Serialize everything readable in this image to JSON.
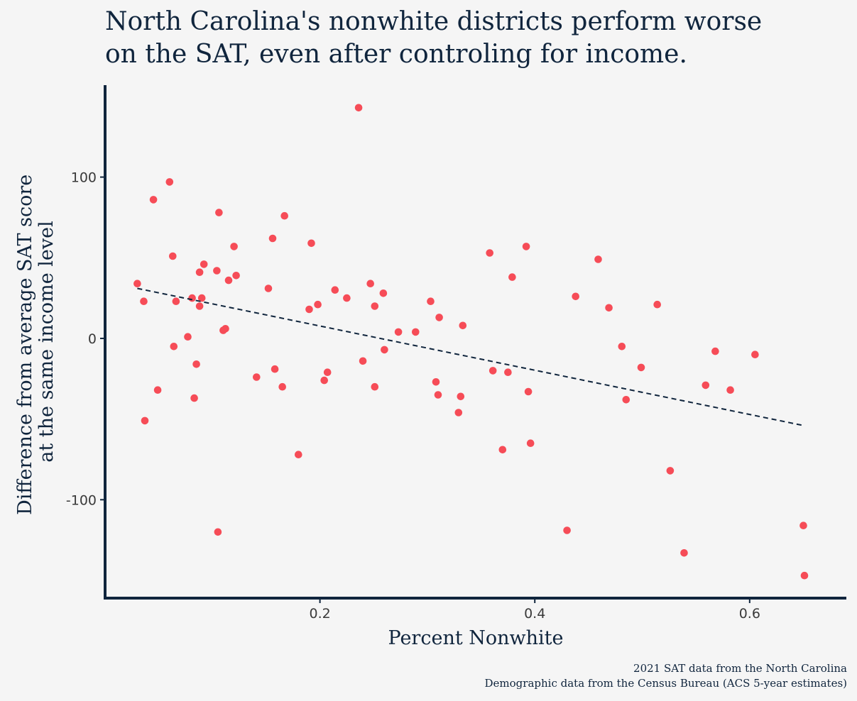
{
  "title_lines": [
    "North Carolina's nonwhite districts perform worse",
    "on the SAT, even after controling for income."
  ],
  "caption_lines": [
    "2021 SAT data from the North Carolina",
    "Demographic data from the Census Bureau (ACS 5-year estimates)"
  ],
  "colors": {
    "point": "#f64c57",
    "axis": "#10253d",
    "trend": "#10253d",
    "background": "#f5f5f5"
  },
  "chart_data": {
    "type": "scatter",
    "xlabel": "Percent Nonwhite",
    "ylabel_lines": [
      "Difference from average SAT score",
      "at the same income level"
    ],
    "xlim": [
      0.0,
      0.69
    ],
    "ylim": [
      -161,
      157
    ],
    "xticks": [
      0.2,
      0.4,
      0.6
    ],
    "xtick_labels": [
      "0.2",
      "0.4",
      "0.6"
    ],
    "yticks": [
      100,
      0,
      -100
    ],
    "ytick_labels": [
      "100",
      "0",
      "-100"
    ],
    "grid": false,
    "trend_line": {
      "style": "dashed",
      "x": [
        0.03,
        0.65
      ],
      "y": [
        31,
        -54
      ]
    },
    "points": [
      [
        0.03,
        34
      ],
      [
        0.036,
        23
      ],
      [
        0.037,
        -51
      ],
      [
        0.045,
        86
      ],
      [
        0.049,
        -32
      ],
      [
        0.06,
        97
      ],
      [
        0.063,
        51
      ],
      [
        0.064,
        -5
      ],
      [
        0.066,
        23
      ],
      [
        0.077,
        1
      ],
      [
        0.081,
        25
      ],
      [
        0.083,
        -37
      ],
      [
        0.085,
        -16
      ],
      [
        0.088,
        20
      ],
      [
        0.088,
        41
      ],
      [
        0.09,
        25
      ],
      [
        0.092,
        46
      ],
      [
        0.104,
        42
      ],
      [
        0.105,
        -120
      ],
      [
        0.106,
        78
      ],
      [
        0.11,
        5
      ],
      [
        0.112,
        6
      ],
      [
        0.115,
        36
      ],
      [
        0.12,
        57
      ],
      [
        0.122,
        39
      ],
      [
        0.141,
        -24
      ],
      [
        0.152,
        31
      ],
      [
        0.156,
        62
      ],
      [
        0.158,
        -19
      ],
      [
        0.165,
        -30
      ],
      [
        0.167,
        76
      ],
      [
        0.18,
        -72
      ],
      [
        0.19,
        18
      ],
      [
        0.192,
        59
      ],
      [
        0.198,
        21
      ],
      [
        0.204,
        -26
      ],
      [
        0.207,
        -21
      ],
      [
        0.214,
        30
      ],
      [
        0.225,
        25
      ],
      [
        0.236,
        143
      ],
      [
        0.24,
        -14
      ],
      [
        0.247,
        34
      ],
      [
        0.251,
        20
      ],
      [
        0.251,
        -30
      ],
      [
        0.259,
        28
      ],
      [
        0.26,
        -7
      ],
      [
        0.273,
        4
      ],
      [
        0.289,
        4
      ],
      [
        0.303,
        23
      ],
      [
        0.308,
        -27
      ],
      [
        0.31,
        -35
      ],
      [
        0.311,
        13
      ],
      [
        0.329,
        -46
      ],
      [
        0.331,
        -36
      ],
      [
        0.333,
        8
      ],
      [
        0.358,
        53
      ],
      [
        0.361,
        -20
      ],
      [
        0.37,
        -69
      ],
      [
        0.375,
        -21
      ],
      [
        0.379,
        38
      ],
      [
        0.392,
        57
      ],
      [
        0.394,
        -33
      ],
      [
        0.396,
        -65
      ],
      [
        0.43,
        -119
      ],
      [
        0.438,
        26
      ],
      [
        0.459,
        49
      ],
      [
        0.469,
        19
      ],
      [
        0.481,
        -5
      ],
      [
        0.485,
        -38
      ],
      [
        0.499,
        -18
      ],
      [
        0.514,
        21
      ],
      [
        0.526,
        -82
      ],
      [
        0.539,
        -133
      ],
      [
        0.559,
        -29
      ],
      [
        0.568,
        -8
      ],
      [
        0.582,
        -32
      ],
      [
        0.605,
        -10
      ],
      [
        0.65,
        -116
      ],
      [
        0.651,
        -147
      ]
    ]
  }
}
